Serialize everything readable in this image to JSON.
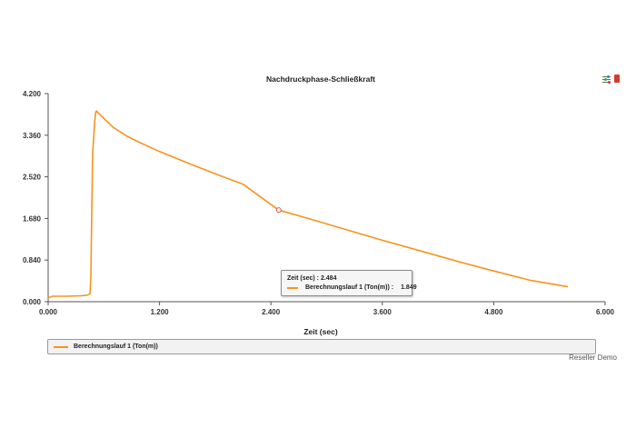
{
  "chart_data": {
    "type": "line",
    "title": "Nachdruckphase-Schließkraft",
    "xlabel": "Zeit (sec)",
    "ylabel": "",
    "xlim": [
      0,
      6
    ],
    "ylim": [
      0,
      4.2
    ],
    "x_ticks": [
      "0.000",
      "1.200",
      "2.400",
      "3.600",
      "4.800",
      "6.000"
    ],
    "y_ticks": [
      "0.000",
      "0.840",
      "1.680",
      "2.520",
      "3.360",
      "4.200"
    ],
    "grid": false,
    "legend_position": "bottom",
    "series": [
      {
        "name": "Berechnungslauf 1 (Ton(m))",
        "color": "#f7941d",
        "x": [
          0.0,
          0.05,
          0.2,
          0.35,
          0.42,
          0.45,
          0.46,
          0.47,
          0.48,
          0.5,
          0.51,
          0.52,
          0.53,
          0.6,
          0.7,
          0.85,
          1.0,
          1.2,
          1.5,
          1.8,
          2.1,
          2.484,
          2.8,
          3.2,
          3.6,
          4.0,
          4.4,
          4.8,
          5.2,
          5.6
        ],
        "y": [
          0.08,
          0.11,
          0.11,
          0.12,
          0.13,
          0.16,
          0.5,
          1.8,
          3.0,
          3.6,
          3.8,
          3.85,
          3.83,
          3.7,
          3.52,
          3.34,
          3.2,
          3.03,
          2.8,
          2.58,
          2.37,
          1.849,
          1.68,
          1.46,
          1.24,
          1.03,
          0.82,
          0.62,
          0.43,
          0.3
        ]
      }
    ],
    "annotations": [
      {
        "type": "tooltip",
        "x": 2.484,
        "y": 1.849,
        "x_text": "Zeit (sec) : 2.484",
        "series_text": "Berechnungslauf 1 (Ton(m)) :",
        "value_text": "1.849"
      }
    ]
  },
  "tooltip": {
    "x_text": "Zeit (sec) : 2.484",
    "series_text": "Berechnungslauf 1 (Ton(m)) :",
    "value_text": "1.849"
  },
  "legend": {
    "label": "Berechnungslauf 1 (Ton(m))"
  },
  "watermark": "Reseller Demo",
  "toolbar": {
    "settings_icon": "settings-sliders-icon",
    "export_icon": "export-icon"
  }
}
